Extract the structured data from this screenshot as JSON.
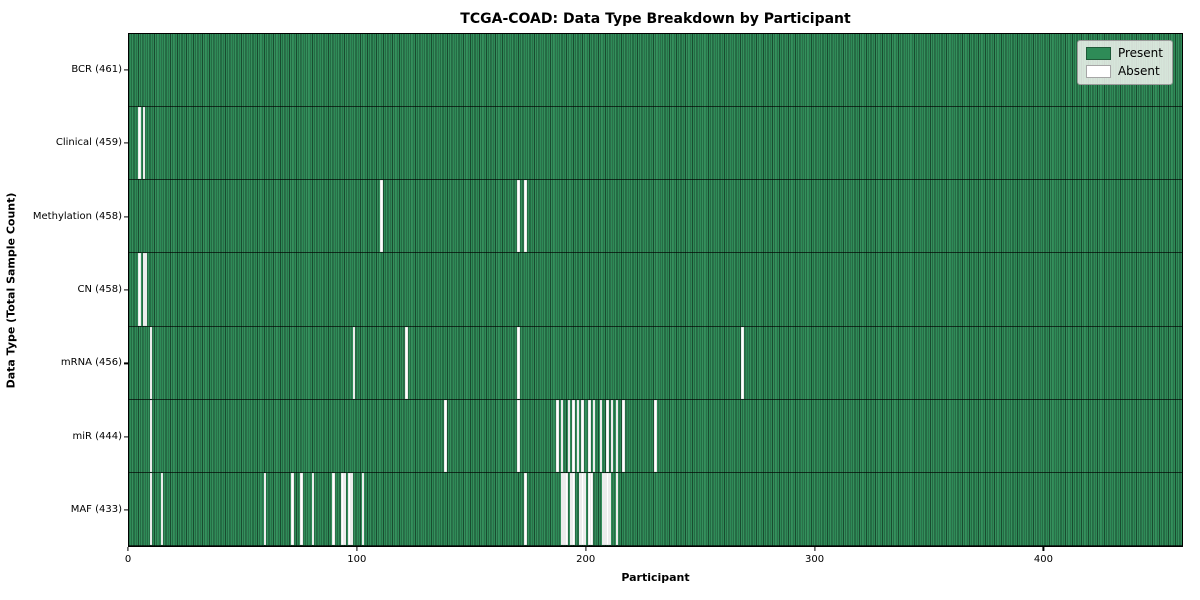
{
  "chart_data": {
    "type": "heatmap",
    "title": "TCGA-COAD: Data Type Breakdown by Participant",
    "xlabel": "Participant",
    "ylabel": "Data Type (Total Sample Count)",
    "x_ticks": [
      0,
      100,
      200,
      300,
      400
    ],
    "x_max": 461,
    "total_participants": 461,
    "grid": false,
    "legend_position": "upper right",
    "legend": [
      {
        "label": "Present",
        "color": "#2e8b57"
      },
      {
        "label": "Absent",
        "color": "#ffffff"
      }
    ],
    "colors": {
      "present": "#2e8b57",
      "absent": "#ffffff",
      "cell_edge": "rgba(0,0,0,0.45)",
      "plot_border": "#000000"
    },
    "rows": [
      {
        "label": "BCR (461)",
        "data_type": "BCR",
        "present_count": 461,
        "absent_participants": []
      },
      {
        "label": "Clinical (459)",
        "data_type": "Clinical",
        "present_count": 459,
        "absent_participants": [
          4,
          6
        ]
      },
      {
        "label": "Methylation (458)",
        "data_type": "Methylation",
        "present_count": 458,
        "absent_participants": [
          110,
          170,
          173
        ]
      },
      {
        "label": "CN (458)",
        "data_type": "CN",
        "present_count": 458,
        "absent_participants": [
          4,
          6,
          7
        ]
      },
      {
        "label": "mRNA (456)",
        "data_type": "mRNA",
        "present_count": 456,
        "absent_participants": [
          9,
          98,
          121,
          170,
          268
        ]
      },
      {
        "label": "miR (444)",
        "data_type": "miR",
        "present_count": 444,
        "absent_participants": [
          9,
          138,
          170,
          187,
          189,
          192,
          194,
          196,
          198,
          201,
          203,
          206,
          209,
          211,
          213,
          216,
          230
        ]
      },
      {
        "label": "MAF (433)",
        "data_type": "MAF",
        "present_count": 433,
        "absent_participants": [
          9,
          14,
          59,
          71,
          75,
          80,
          89,
          93,
          94,
          96,
          97,
          102,
          173,
          189,
          190,
          191,
          193,
          194,
          197,
          198,
          199,
          201,
          202,
          207,
          208,
          209,
          210,
          213
        ]
      }
    ]
  }
}
